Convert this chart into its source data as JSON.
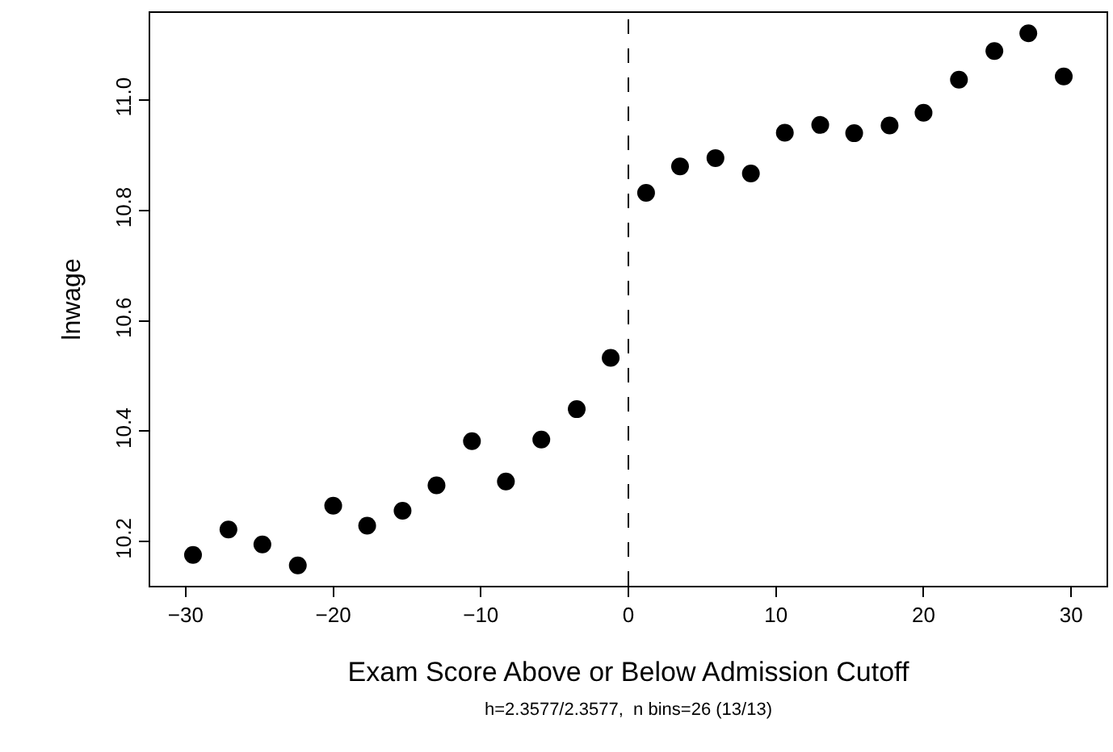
{
  "chart_data": {
    "type": "scatter",
    "xlabel": "Exam Score Above or Below Admission Cutoff",
    "ylabel": "lnwage",
    "annotations": [
      "h=2.3577/2.3577,  n bins=26 (13/13)"
    ],
    "x": [
      -29.5,
      -27.1,
      -24.8,
      -22.4,
      -20.0,
      -17.7,
      -15.3,
      -13.0,
      -10.6,
      -8.3,
      -5.9,
      -3.5,
      -1.2,
      1.2,
      3.5,
      5.9,
      8.3,
      10.6,
      13.0,
      15.3,
      17.7,
      20.0,
      22.4,
      24.8,
      27.1,
      29.5
    ],
    "series": [
      {
        "color": "#000000",
        "values": [
          10.176,
          10.222,
          10.195,
          10.157,
          10.265,
          10.229,
          10.256,
          10.302,
          10.382,
          10.309,
          10.385,
          10.44,
          10.533,
          10.832,
          10.88,
          10.895,
          10.867,
          10.941,
          10.955,
          10.94,
          10.954,
          10.977,
          11.037,
          11.089,
          11.121,
          11.043
        ]
      }
    ],
    "xlim": [
      -32.4,
      32.4
    ],
    "ylim": [
      10.12,
      11.158
    ],
    "xticks": [
      {
        "value": -30,
        "label": "−30"
      },
      {
        "value": -20,
        "label": "−20"
      },
      {
        "value": -10,
        "label": "−10"
      },
      0,
      10,
      20,
      30
    ],
    "yticks": [
      {
        "value": 10.2,
        "label": "10.2"
      },
      {
        "value": 10.4,
        "label": "10.4"
      },
      {
        "value": 10.6,
        "label": "10.6"
      },
      {
        "value": 10.8,
        "label": "10.8"
      },
      {
        "value": 11.0,
        "label": "11.0"
      }
    ],
    "ref_lines": [
      {
        "axis": "x",
        "value": 0,
        "color": "#000000",
        "line_style": "dashed"
      }
    ],
    "marker": "circle"
  }
}
